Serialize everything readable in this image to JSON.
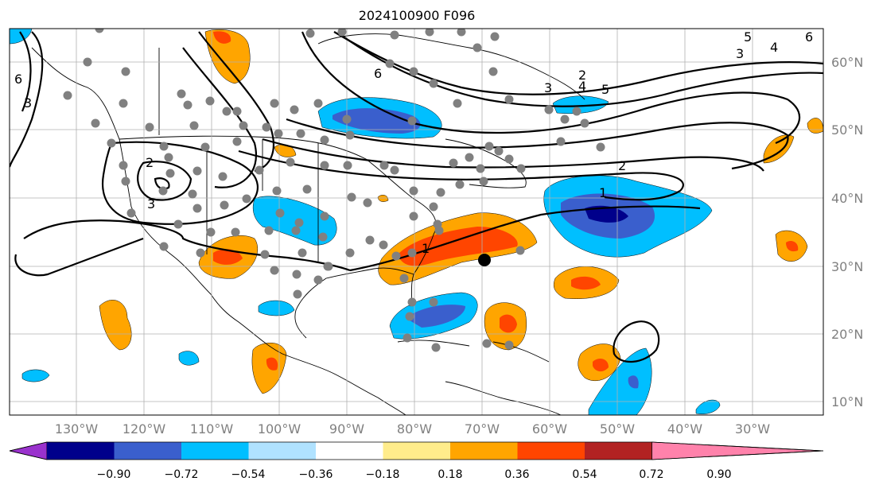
{
  "title": "2024100900 F096",
  "lon_labels": [
    "130°W",
    "120°W",
    "110°W",
    "100°W",
    "90°W",
    "80°W",
    "70°W",
    "60°W",
    "50°W",
    "40°W",
    "30°W"
  ],
  "lat_labels": [
    "60°N",
    "50°N",
    "40°N",
    "30°N",
    "20°N",
    "10°N"
  ],
  "colorbar": {
    "tick_labels": [
      "−0.90",
      "−0.72",
      "−0.54",
      "−0.36",
      "−0.18",
      "0.18",
      "0.36",
      "0.54",
      "0.72",
      "0.90"
    ],
    "colors": [
      "#9a32cd",
      "#00008b",
      "#3a5fcd",
      "#00bfff",
      "#b0e2ff",
      "#ffffff",
      "#ffec8b",
      "#ffa500",
      "#ff4500",
      "#b22222",
      "#ff82ab"
    ]
  },
  "contour_labels": [
    "5",
    "6",
    "4",
    "3",
    "6",
    "2",
    "3",
    "4",
    "5",
    "2",
    "1",
    "2",
    "3",
    "1",
    "6",
    "3"
  ],
  "colors": {
    "grid": "#b0b0b0",
    "coast": "#000000",
    "station": "#808080",
    "storm_center": "#000000"
  }
}
